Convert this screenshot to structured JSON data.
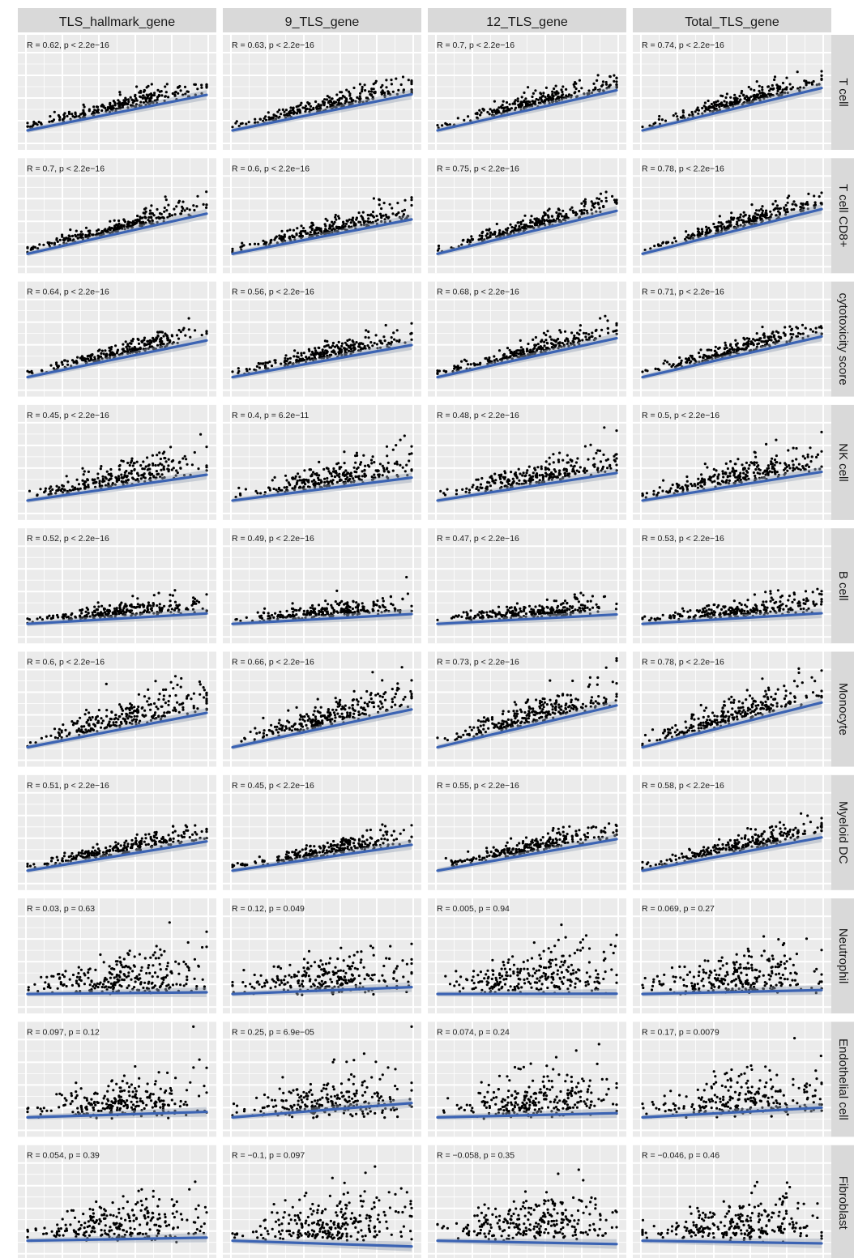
{
  "chart_data": {
    "type": "scatter",
    "facet_layout": "grid",
    "grid": false,
    "columns": [
      "TLS_hallmark_gene",
      "9_TLS_gene",
      "12_TLS_gene",
      "Total_TLS_gene"
    ],
    "rows": [
      "T cell",
      "T cell CD8+",
      "cytotoxicity score",
      "NK cell",
      "B cell",
      "Monocyte",
      "Myeloid DC",
      "Neutrophil",
      "Endothelial cell",
      "Fibroblast"
    ],
    "annotations": [
      [
        "R = 0.62, p < 2.2e−16",
        "R = 0.63, p < 2.2e−16",
        "R = 0.7, p < 2.2e−16",
        "R = 0.74, p < 2.2e−16"
      ],
      [
        "R = 0.7, p < 2.2e−16",
        "R = 0.6, p < 2.2e−16",
        "R = 0.75, p < 2.2e−16",
        "R = 0.78, p < 2.2e−16"
      ],
      [
        "R = 0.64, p < 2.2e−16",
        "R = 0.56, p < 2.2e−16",
        "R = 0.68, p < 2.2e−16",
        "R = 0.71, p < 2.2e−16"
      ],
      [
        "R = 0.45, p < 2.2e−16",
        "R = 0.4, p = 6.2e−11",
        "R = 0.48, p < 2.2e−16",
        "R = 0.5, p < 2.2e−16"
      ],
      [
        "R = 0.52, p < 2.2e−16",
        "R = 0.49, p < 2.2e−16",
        "R = 0.47, p < 2.2e−16",
        "R = 0.53, p < 2.2e−16"
      ],
      [
        "R = 0.6, p < 2.2e−16",
        "R = 0.66, p < 2.2e−16",
        "R = 0.73, p < 2.2e−16",
        "R = 0.78, p < 2.2e−16"
      ],
      [
        "R = 0.51, p < 2.2e−16",
        "R = 0.45, p < 2.2e−16",
        "R = 0.55, p < 2.2e−16",
        "R = 0.58, p < 2.2e−16"
      ],
      [
        "R = 0.03, p = 0.63",
        "R = 0.12, p = 0.049",
        "R = 0.005, p = 0.94",
        "R = 0.069, p = 0.27"
      ],
      [
        "R = 0.097, p = 0.12",
        "R = 0.25, p = 6.9e−05",
        "R = 0.074, p = 0.24",
        "R = 0.17, p = 0.0079"
      ],
      [
        "R = 0.054, p = 0.39",
        "R = −0.1, p = 0.097",
        "R = −0.058, p = 0.35",
        "R = −0.046, p = 0.46"
      ]
    ],
    "r_values": [
      [
        0.62,
        0.63,
        0.7,
        0.74
      ],
      [
        0.7,
        0.6,
        0.75,
        0.78
      ],
      [
        0.64,
        0.56,
        0.68,
        0.71
      ],
      [
        0.45,
        0.4,
        0.48,
        0.5
      ],
      [
        0.52,
        0.49,
        0.47,
        0.53
      ],
      [
        0.6,
        0.66,
        0.73,
        0.78
      ],
      [
        0.51,
        0.45,
        0.55,
        0.58
      ],
      [
        0.03,
        0.12,
        0.005,
        0.069
      ],
      [
        0.097,
        0.25,
        0.074,
        0.17
      ],
      [
        0.054,
        -0.1,
        -0.058,
        -0.046
      ]
    ],
    "fit_line": "linear regression with confidence band",
    "fit_color": "#3b63b3",
    "point_color": "#000000",
    "panel_background": "#ebebeb",
    "strip_background": "#d9d9d9"
  }
}
